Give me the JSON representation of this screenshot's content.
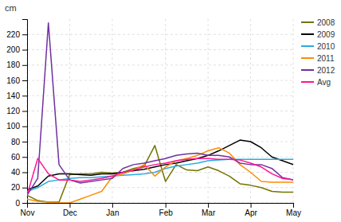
{
  "chart_data": {
    "type": "line",
    "ylabel": "cm",
    "x": [
      0,
      1,
      2,
      3,
      4,
      5,
      6,
      7,
      8,
      9,
      10,
      11,
      12,
      13,
      14,
      15,
      16,
      17,
      18,
      19,
      20,
      21,
      22,
      23,
      24,
      25
    ],
    "xlim": [
      0,
      25
    ],
    "xticks": [
      {
        "value": 0,
        "label": "Nov"
      },
      {
        "value": 4,
        "label": "Dec"
      },
      {
        "value": 8,
        "label": "Jan"
      },
      {
        "value": 13,
        "label": "Feb"
      },
      {
        "value": 17,
        "label": "Mar"
      },
      {
        "value": 21,
        "label": "Apr"
      },
      {
        "value": 25,
        "label": "May"
      }
    ],
    "ylim": [
      0,
      240
    ],
    "yticks": [
      0,
      20,
      40,
      60,
      80,
      100,
      120,
      140,
      160,
      180,
      200,
      220
    ],
    "grid": true,
    "legend": "right",
    "series": [
      {
        "name": "2008",
        "color": "#737300",
        "values": [
          10,
          3,
          1,
          1,
          37,
          38,
          38,
          40,
          39,
          40,
          45,
          48,
          75,
          28,
          50,
          43,
          42,
          47,
          42,
          35,
          25,
          23,
          20,
          15,
          14,
          14
        ]
      },
      {
        "name": "2009",
        "color": "#000000",
        "values": [
          17,
          22,
          35,
          38,
          38,
          37,
          36,
          38,
          38,
          40,
          42,
          44,
          47,
          50,
          52,
          55,
          58,
          62,
          68,
          75,
          82,
          80,
          72,
          60,
          55,
          50
        ]
      },
      {
        "name": "2010",
        "color": "#29abe2",
        "values": [
          15,
          20,
          28,
          30,
          32,
          33,
          33,
          34,
          35,
          36,
          37,
          38,
          40,
          45,
          48,
          50,
          52,
          55,
          56,
          57,
          57,
          57,
          57,
          57,
          57,
          57
        ]
      },
      {
        "name": "2011",
        "color": "#ff8c00",
        "values": [
          5,
          2,
          1,
          0,
          0,
          5,
          10,
          15,
          34,
          38,
          43,
          50,
          35,
          47,
          55,
          58,
          62,
          68,
          72,
          65,
          50,
          40,
          28,
          27,
          27,
          27
        ]
      },
      {
        "name": "2012",
        "color": "#7030a0",
        "values": [
          10,
          32,
          235,
          50,
          30,
          26,
          28,
          30,
          32,
          45,
          50,
          52,
          55,
          58,
          62,
          64,
          65,
          62,
          62,
          60,
          52,
          50,
          50,
          45,
          33,
          30
        ]
      },
      {
        "name": "Avg",
        "color": "#ff1493",
        "values": [
          10,
          58,
          38,
          30,
          30,
          28,
          30,
          32,
          35,
          40,
          43,
          47,
          50,
          52,
          55,
          57,
          58,
          58,
          57,
          57,
          56,
          52,
          47,
          38,
          32,
          30
        ]
      }
    ]
  }
}
